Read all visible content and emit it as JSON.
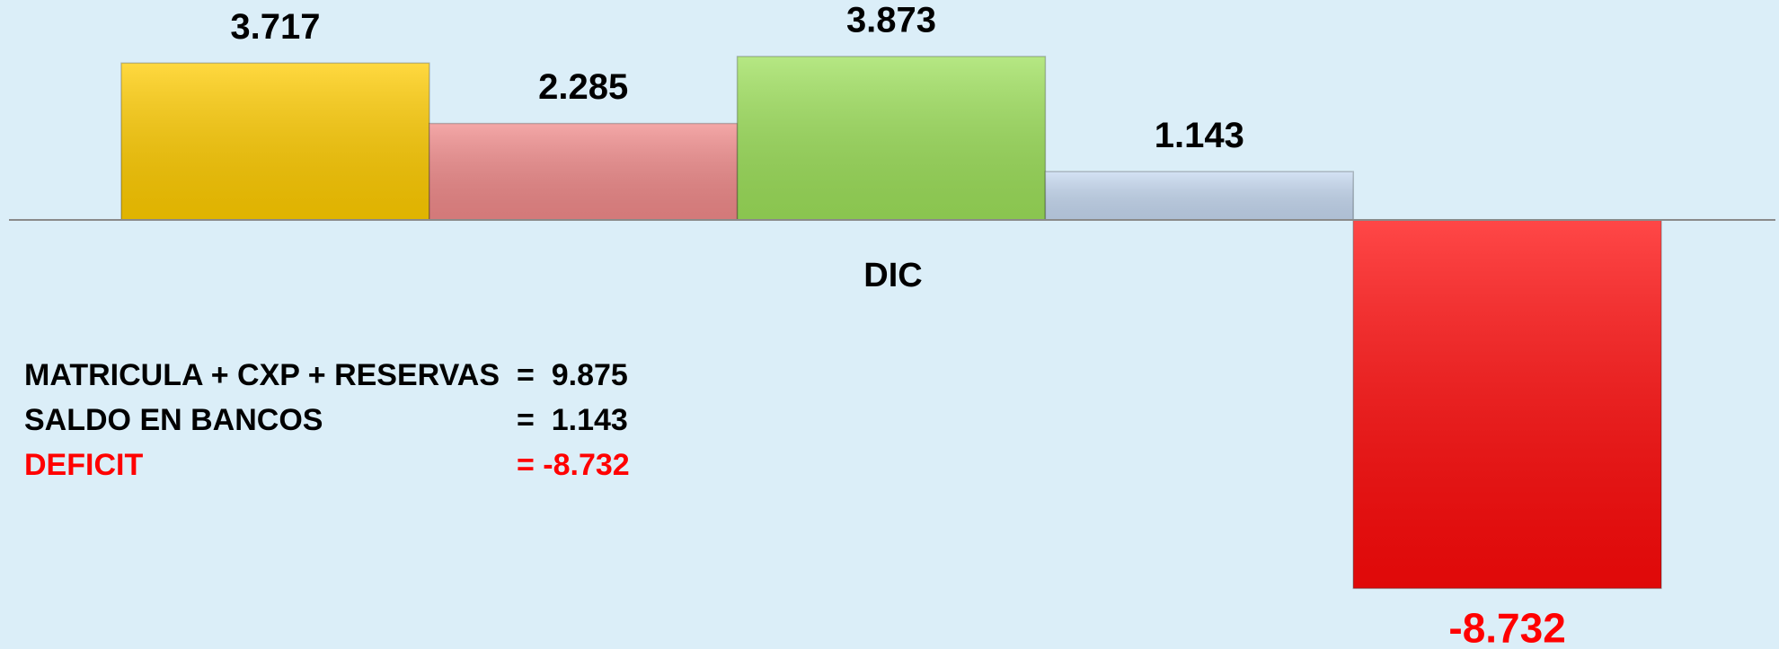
{
  "chart_data": {
    "type": "bar",
    "categories": [
      "DIC"
    ],
    "series": [
      {
        "color": "#ffcc00",
        "label_color": "#000000",
        "values": [
          3.717
        ]
      },
      {
        "color": "#f08a8a",
        "label_color": "#000000",
        "values": [
          2.285
        ]
      },
      {
        "color": "#9de05a",
        "label_color": "#000000",
        "values": [
          3.873
        ]
      },
      {
        "color": "#c6d9f1",
        "label_color": "#000000",
        "values": [
          1.143
        ]
      },
      {
        "color": "#ff0a0a",
        "label_color": "#ff0000",
        "values": [
          -8.732
        ]
      }
    ],
    "ylim": [
      -10,
      5
    ],
    "summary": [
      {
        "label": "MATRICULA + CXP + RESERVAS",
        "value": "=  9.875",
        "color": "#000000"
      },
      {
        "label": "SALDO EN BANCOS",
        "value": "=  1.143",
        "color": "#000000"
      },
      {
        "label": "DEFICIT",
        "value": "= -8.732",
        "color": "#ff0000"
      }
    ]
  }
}
